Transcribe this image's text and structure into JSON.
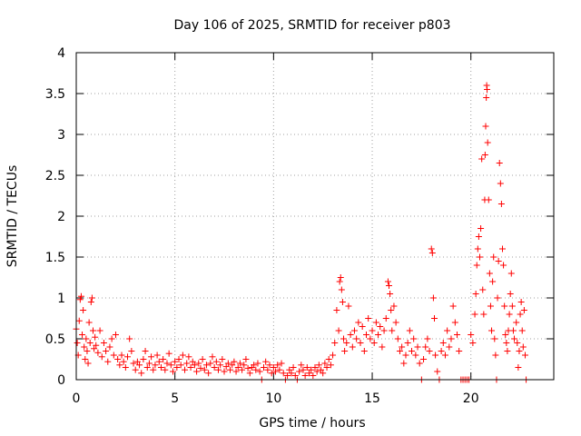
{
  "chart_data": {
    "type": "scatter",
    "title": "Day 106 of 2025, SRMTID for receiver p803",
    "xlabel": "GPS time / hours",
    "ylabel": "SRMTID / TECUs",
    "xlim": [
      0,
      24.2
    ],
    "ylim": [
      0,
      4
    ],
    "xticks": [
      0,
      5,
      10,
      15,
      20
    ],
    "yticks": [
      0,
      0.5,
      1,
      1.5,
      2,
      2.5,
      3,
      3.5,
      4
    ],
    "xtick_labels": [
      "0",
      "5",
      "10",
      "15",
      "20"
    ],
    "ytick_labels": [
      "0",
      "0.5",
      "1",
      "1.5",
      "2",
      "2.5",
      "3",
      "3.5",
      "4"
    ],
    "grid": true,
    "marker": "+",
    "color": "#ff0000",
    "series": [
      {
        "name": "SRMTID",
        "points": [
          [
            0.0,
            0.62
          ],
          [
            0.05,
            0.45
          ],
          [
            0.1,
            0.3
          ],
          [
            0.15,
            0.72
          ],
          [
            0.2,
            0.98
          ],
          [
            0.25,
            1.02
          ],
          [
            0.3,
            0.55
          ],
          [
            0.35,
            0.85
          ],
          [
            0.4,
            0.4
          ],
          [
            0.45,
            0.25
          ],
          [
            0.5,
            0.5
          ],
          [
            0.55,
            0.35
          ],
          [
            0.6,
            0.2
          ],
          [
            0.65,
            0.7
          ],
          [
            0.7,
            0.45
          ],
          [
            0.75,
            0.95
          ],
          [
            0.8,
            1.0
          ],
          [
            0.85,
            0.6
          ],
          [
            0.9,
            0.38
          ],
          [
            0.95,
            0.52
          ],
          [
            1.0,
            0.42
          ],
          [
            1.1,
            0.33
          ],
          [
            1.2,
            0.6
          ],
          [
            1.3,
            0.28
          ],
          [
            1.4,
            0.45
          ],
          [
            1.5,
            0.35
          ],
          [
            1.6,
            0.22
          ],
          [
            1.7,
            0.4
          ],
          [
            1.8,
            0.5
          ],
          [
            1.9,
            0.3
          ],
          [
            2.0,
            0.55
          ],
          [
            2.1,
            0.25
          ],
          [
            2.2,
            0.18
          ],
          [
            2.3,
            0.3
          ],
          [
            2.4,
            0.22
          ],
          [
            2.5,
            0.15
          ],
          [
            2.6,
            0.28
          ],
          [
            2.7,
            0.5
          ],
          [
            2.8,
            0.35
          ],
          [
            2.9,
            0.2
          ],
          [
            3.0,
            0.12
          ],
          [
            3.1,
            0.22
          ],
          [
            3.2,
            0.18
          ],
          [
            3.3,
            0.08
          ],
          [
            3.4,
            0.25
          ],
          [
            3.5,
            0.35
          ],
          [
            3.6,
            0.15
          ],
          [
            3.7,
            0.2
          ],
          [
            3.8,
            0.28
          ],
          [
            3.9,
            0.12
          ],
          [
            4.0,
            0.18
          ],
          [
            4.1,
            0.3
          ],
          [
            4.2,
            0.22
          ],
          [
            4.3,
            0.15
          ],
          [
            4.4,
            0.25
          ],
          [
            4.5,
            0.12
          ],
          [
            4.6,
            0.2
          ],
          [
            4.7,
            0.32
          ],
          [
            4.8,
            0.18
          ],
          [
            4.9,
            0.1
          ],
          [
            5.0,
            0.22
          ],
          [
            5.1,
            0.15
          ],
          [
            5.2,
            0.25
          ],
          [
            5.3,
            0.18
          ],
          [
            5.4,
            0.3
          ],
          [
            5.5,
            0.12
          ],
          [
            5.6,
            0.2
          ],
          [
            5.7,
            0.28
          ],
          [
            5.8,
            0.15
          ],
          [
            5.9,
            0.22
          ],
          [
            6.0,
            0.18
          ],
          [
            6.1,
            0.1
          ],
          [
            6.2,
            0.2
          ],
          [
            6.3,
            0.14
          ],
          [
            6.4,
            0.25
          ],
          [
            6.5,
            0.12
          ],
          [
            6.6,
            0.18
          ],
          [
            6.7,
            0.08
          ],
          [
            6.8,
            0.2
          ],
          [
            6.9,
            0.28
          ],
          [
            7.0,
            0.15
          ],
          [
            7.1,
            0.22
          ],
          [
            7.2,
            0.12
          ],
          [
            7.3,
            0.18
          ],
          [
            7.4,
            0.25
          ],
          [
            7.5,
            0.1
          ],
          [
            7.6,
            0.16
          ],
          [
            7.7,
            0.2
          ],
          [
            7.8,
            0.12
          ],
          [
            7.9,
            0.18
          ],
          [
            8.0,
            0.22
          ],
          [
            8.1,
            0.1
          ],
          [
            8.2,
            0.15
          ],
          [
            8.3,
            0.2
          ],
          [
            8.4,
            0.12
          ],
          [
            8.5,
            0.18
          ],
          [
            8.6,
            0.25
          ],
          [
            8.7,
            0.14
          ],
          [
            8.8,
            0.08
          ],
          [
            8.9,
            0.15
          ],
          [
            9.0,
            0.18
          ],
          [
            9.1,
            0.12
          ],
          [
            9.2,
            0.2
          ],
          [
            9.3,
            0.1
          ],
          [
            9.4,
            0.0
          ],
          [
            9.5,
            0.15
          ],
          [
            9.6,
            0.22
          ],
          [
            9.7,
            0.12
          ],
          [
            9.8,
            0.18
          ],
          [
            9.9,
            0.08
          ],
          [
            10.0,
            0.15
          ],
          [
            10.1,
            0.1
          ],
          [
            10.2,
            0.18
          ],
          [
            10.3,
            0.12
          ],
          [
            10.4,
            0.2
          ],
          [
            10.5,
            0.08
          ],
          [
            10.6,
            0.0
          ],
          [
            10.7,
            0.05
          ],
          [
            10.8,
            0.12
          ],
          [
            10.9,
            0.08
          ],
          [
            11.0,
            0.15
          ],
          [
            11.1,
            0.05
          ],
          [
            11.2,
            0.0
          ],
          [
            11.3,
            0.1
          ],
          [
            11.4,
            0.18
          ],
          [
            11.5,
            0.12
          ],
          [
            11.6,
            0.05
          ],
          [
            11.7,
            0.15
          ],
          [
            11.8,
            0.08
          ],
          [
            11.9,
            0.12
          ],
          [
            12.0,
            0.05
          ],
          [
            12.1,
            0.15
          ],
          [
            12.2,
            0.1
          ],
          [
            12.3,
            0.18
          ],
          [
            12.4,
            0.12
          ],
          [
            12.5,
            0.08
          ],
          [
            12.6,
            0.2
          ],
          [
            12.7,
            0.15
          ],
          [
            12.8,
            0.25
          ],
          [
            12.9,
            0.18
          ],
          [
            13.0,
            0.3
          ],
          [
            13.1,
            0.45
          ],
          [
            13.2,
            0.85
          ],
          [
            13.3,
            0.6
          ],
          [
            13.35,
            1.2
          ],
          [
            13.4,
            1.25
          ],
          [
            13.45,
            1.1
          ],
          [
            13.5,
            0.95
          ],
          [
            13.55,
            0.5
          ],
          [
            13.6,
            0.35
          ],
          [
            13.7,
            0.45
          ],
          [
            13.8,
            0.9
          ],
          [
            13.9,
            0.55
          ],
          [
            14.0,
            0.4
          ],
          [
            14.1,
            0.6
          ],
          [
            14.2,
            0.5
          ],
          [
            14.3,
            0.7
          ],
          [
            14.4,
            0.45
          ],
          [
            14.5,
            0.65
          ],
          [
            14.6,
            0.35
          ],
          [
            14.7,
            0.55
          ],
          [
            14.8,
            0.75
          ],
          [
            14.9,
            0.5
          ],
          [
            15.0,
            0.6
          ],
          [
            15.1,
            0.45
          ],
          [
            15.2,
            0.7
          ],
          [
            15.3,
            0.55
          ],
          [
            15.4,
            0.65
          ],
          [
            15.5,
            0.4
          ],
          [
            15.6,
            0.6
          ],
          [
            15.7,
            0.75
          ],
          [
            15.8,
            1.2
          ],
          [
            15.85,
            1.15
          ],
          [
            15.9,
            1.05
          ],
          [
            15.95,
            0.85
          ],
          [
            16.0,
            0.6
          ],
          [
            16.1,
            0.9
          ],
          [
            16.2,
            0.7
          ],
          [
            16.3,
            0.5
          ],
          [
            16.4,
            0.35
          ],
          [
            16.5,
            0.4
          ],
          [
            16.6,
            0.2
          ],
          [
            16.7,
            0.3
          ],
          [
            16.8,
            0.45
          ],
          [
            16.9,
            0.6
          ],
          [
            17.0,
            0.35
          ],
          [
            17.1,
            0.5
          ],
          [
            17.2,
            0.3
          ],
          [
            17.3,
            0.4
          ],
          [
            17.4,
            0.2
          ],
          [
            17.5,
            0.0
          ],
          [
            17.6,
            0.25
          ],
          [
            17.7,
            0.4
          ],
          [
            17.8,
            0.5
          ],
          [
            17.9,
            0.35
          ],
          [
            18.0,
            1.6
          ],
          [
            18.05,
            1.55
          ],
          [
            18.1,
            1.0
          ],
          [
            18.15,
            0.75
          ],
          [
            18.2,
            0.3
          ],
          [
            18.3,
            0.1
          ],
          [
            18.4,
            0.0
          ],
          [
            18.5,
            0.35
          ],
          [
            18.6,
            0.45
          ],
          [
            18.7,
            0.3
          ],
          [
            18.8,
            0.6
          ],
          [
            18.9,
            0.4
          ],
          [
            19.0,
            0.5
          ],
          [
            19.1,
            0.9
          ],
          [
            19.2,
            0.7
          ],
          [
            19.3,
            0.55
          ],
          [
            19.4,
            0.35
          ],
          [
            19.5,
            0.0
          ],
          [
            19.6,
            0.0
          ],
          [
            19.7,
            0.0
          ],
          [
            19.8,
            0.0
          ],
          [
            19.9,
            0.0
          ],
          [
            20.0,
            0.55
          ],
          [
            20.1,
            0.45
          ],
          [
            20.2,
            0.8
          ],
          [
            20.25,
            1.05
          ],
          [
            20.3,
            1.4
          ],
          [
            20.35,
            1.6
          ],
          [
            20.4,
            1.75
          ],
          [
            20.45,
            1.5
          ],
          [
            20.5,
            1.85
          ],
          [
            20.55,
            2.7
          ],
          [
            20.6,
            1.1
          ],
          [
            20.65,
            0.8
          ],
          [
            20.7,
            2.2
          ],
          [
            20.72,
            2.75
          ],
          [
            20.75,
            3.1
          ],
          [
            20.78,
            3.45
          ],
          [
            20.8,
            3.6
          ],
          [
            20.82,
            3.55
          ],
          [
            20.85,
            2.9
          ],
          [
            20.9,
            2.2
          ],
          [
            20.95,
            1.3
          ],
          [
            21.0,
            0.9
          ],
          [
            21.05,
            0.6
          ],
          [
            21.1,
            1.2
          ],
          [
            21.15,
            1.5
          ],
          [
            21.2,
            0.5
          ],
          [
            21.25,
            0.3
          ],
          [
            21.3,
            0.0
          ],
          [
            21.35,
            1.0
          ],
          [
            21.4,
            1.45
          ],
          [
            21.45,
            2.65
          ],
          [
            21.5,
            2.4
          ],
          [
            21.55,
            2.15
          ],
          [
            21.6,
            1.6
          ],
          [
            21.65,
            1.4
          ],
          [
            21.7,
            0.9
          ],
          [
            21.75,
            0.55
          ],
          [
            21.8,
            0.45
          ],
          [
            21.85,
            0.35
          ],
          [
            21.9,
            0.6
          ],
          [
            21.95,
            0.8
          ],
          [
            22.0,
            1.05
          ],
          [
            22.05,
            1.3
          ],
          [
            22.1,
            0.9
          ],
          [
            22.15,
            0.6
          ],
          [
            22.2,
            0.5
          ],
          [
            22.3,
            0.7
          ],
          [
            22.35,
            0.45
          ],
          [
            22.4,
            0.15
          ],
          [
            22.45,
            0.35
          ],
          [
            22.5,
            0.8
          ],
          [
            22.55,
            0.95
          ],
          [
            22.6,
            0.6
          ],
          [
            22.65,
            0.4
          ],
          [
            22.7,
            0.85
          ],
          [
            22.75,
            0.3
          ],
          [
            22.8,
            0.0
          ]
        ]
      }
    ]
  }
}
